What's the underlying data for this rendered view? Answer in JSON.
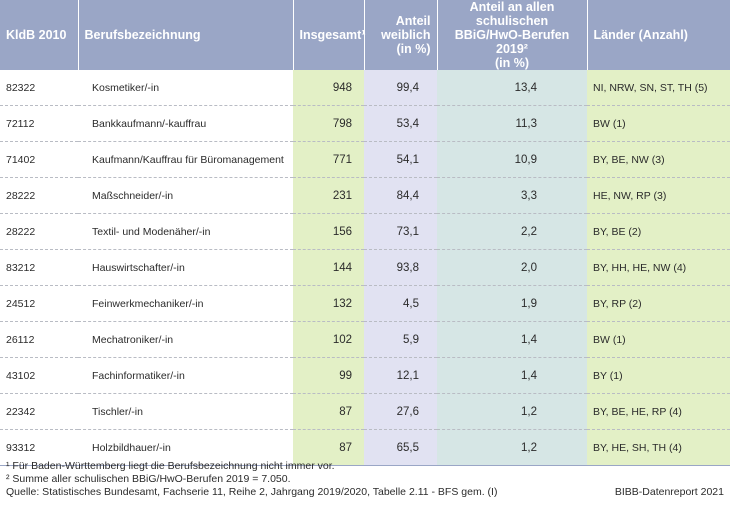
{
  "table": {
    "headers": {
      "kldb": "KldB 2010",
      "beruf": "Berufsbezeichnung",
      "insgesamt": "Insgesamt¹",
      "anteil_weiblich_l1": "Anteil",
      "anteil_weiblich_l2": "weiblich",
      "anteil_weiblich_l3": "(in %)",
      "anteil_schul_l1": "Anteil an allen schulischen",
      "anteil_schul_l2": "BBiG/HwO-Berufen 2019²",
      "anteil_schul_l3": "(in %)",
      "laender": "Länder (Anzahl)"
    },
    "rows": [
      {
        "kldb": "82322",
        "beruf": "Kosmetiker/-in",
        "insgesamt": "948",
        "anteil_weiblich": "99,4",
        "anteil_schul": "13,4",
        "laender": "NI, NRW, SN, ST, TH (5)"
      },
      {
        "kldb": "72112",
        "beruf": "Bankkaufmann/-kauffrau",
        "insgesamt": "798",
        "anteil_weiblich": "53,4",
        "anteil_schul": "11,3",
        "laender": "BW (1)"
      },
      {
        "kldb": "71402",
        "beruf": "Kaufmann/Kauffrau für Büromanagement",
        "insgesamt": "771",
        "anteil_weiblich": "54,1",
        "anteil_schul": "10,9",
        "laender": "BY, BE, NW (3)"
      },
      {
        "kldb": "28222",
        "beruf": "Maßschneider/-in",
        "insgesamt": "231",
        "anteil_weiblich": "84,4",
        "anteil_schul": "3,3",
        "laender": "HE, NW, RP (3)"
      },
      {
        "kldb": "28222",
        "beruf": "Textil- und Modenäher/-in",
        "insgesamt": "156",
        "anteil_weiblich": "73,1",
        "anteil_schul": "2,2",
        "laender": "BY, BE (2)"
      },
      {
        "kldb": "83212",
        "beruf": "Hauswirtschafter/-in",
        "insgesamt": "144",
        "anteil_weiblich": "93,8",
        "anteil_schul": "2,0",
        "laender": "BY, HH, HE, NW (4)"
      },
      {
        "kldb": "24512",
        "beruf": "Feinwerkmechaniker/-in",
        "insgesamt": "132",
        "anteil_weiblich": "4,5",
        "anteil_schul": "1,9",
        "laender": "BY, RP (2)"
      },
      {
        "kldb": "26112",
        "beruf": "Mechatroniker/-in",
        "insgesamt": "102",
        "anteil_weiblich": "5,9",
        "anteil_schul": "1,4",
        "laender": "BW (1)"
      },
      {
        "kldb": "43102",
        "beruf": "Fachinformatiker/-in",
        "insgesamt": "99",
        "anteil_weiblich": "12,1",
        "anteil_schul": "1,4",
        "laender": "BY (1)"
      },
      {
        "kldb": "22342",
        "beruf": "Tischler/-in",
        "insgesamt": "87",
        "anteil_weiblich": "27,6",
        "anteil_schul": "1,2",
        "laender": "BY, BE, HE, RP (4)"
      },
      {
        "kldb": "93312",
        "beruf": "Holzbildhauer/-in",
        "insgesamt": "87",
        "anteil_weiblich": "65,5",
        "anteil_schul": "1,2",
        "laender": "BY, HE, SH, TH (4)"
      }
    ]
  },
  "footnotes": {
    "note1": "¹ Für Baden-Württemberg liegt die Berufsbezeichnung nicht immer vor.",
    "note2": "² Summe aller schulischen BBiG/HwO-Berufen 2019 = 7.050.",
    "source": "Quelle: Statistisches Bundesamt, Fachserie 11, Reihe 2, Jahrgang 2019/2020, Tabelle 2.11 - BFS gem. (I)",
    "credit": "BIBB-Datenreport 2021"
  },
  "colors": {
    "header_bg": "#9aa6c6",
    "insgesamt_bg": "#e3f0c6",
    "anteil_weiblich_bg": "#e1e2f2",
    "anteil_schul_bg": "#d6e6e5",
    "laender_bg": "#e3f0c6"
  }
}
